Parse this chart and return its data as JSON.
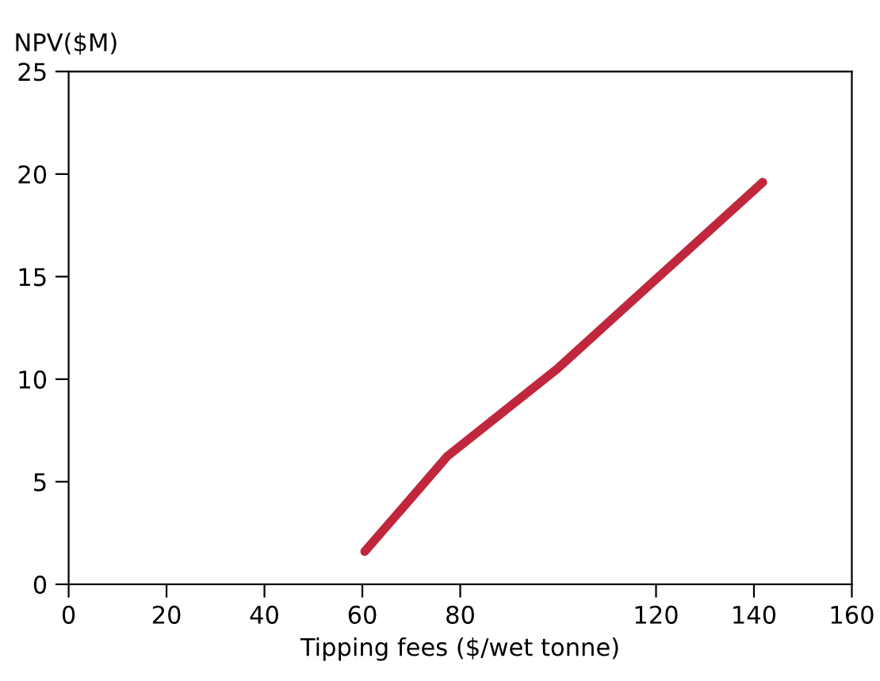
{
  "chart_data": {
    "type": "line",
    "xlabel": "Tipping fees ($/wet tonne)",
    "ylabel": "NPV($M)",
    "x": [
      60.5,
      77.4,
      99.8,
      141.8
    ],
    "series": [
      {
        "color": "#c0273d",
        "values": [
          1.6,
          6.25,
          10.5,
          19.6
        ]
      }
    ],
    "xlim": [
      0,
      160
    ],
    "xticks": [
      0,
      20,
      40,
      60,
      80,
      120,
      140,
      160
    ],
    "ylim": [
      0,
      25
    ],
    "yticks": [
      0,
      5,
      10,
      15,
      20,
      25
    ],
    "grid": false,
    "legend": false,
    "marker": "none",
    "line_style": "solid"
  }
}
